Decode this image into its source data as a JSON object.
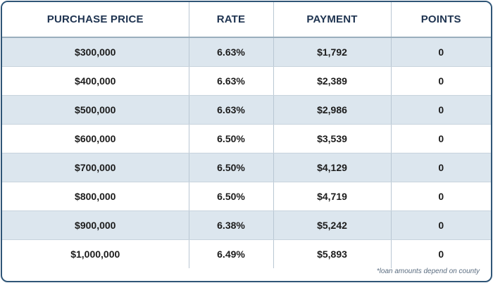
{
  "table": {
    "headers": [
      "PURCHASE PRICE",
      "RATE",
      "PAYMENT",
      "POINTS"
    ],
    "rows": [
      [
        "$300,000",
        "6.63%",
        "$1,792",
        "0"
      ],
      [
        "$400,000",
        "6.63%",
        "$2,389",
        "0"
      ],
      [
        "$500,000",
        "6.63%",
        "$2,986",
        "0"
      ],
      [
        "$600,000",
        "6.50%",
        "$3,539",
        "0"
      ],
      [
        "$700,000",
        "6.50%",
        "$4,129",
        "0"
      ],
      [
        "$800,000",
        "6.50%",
        "$4,719",
        "0"
      ],
      [
        "$900,000",
        "6.38%",
        "$5,242",
        "0"
      ],
      [
        "$1,000,000",
        "6.49%",
        "$5,893",
        "0"
      ]
    ]
  },
  "footnote": "*loan amounts depend on county",
  "colors": {
    "border": "#2f5577",
    "header_text": "#1e3350",
    "row_shade": "#dce6ee"
  }
}
